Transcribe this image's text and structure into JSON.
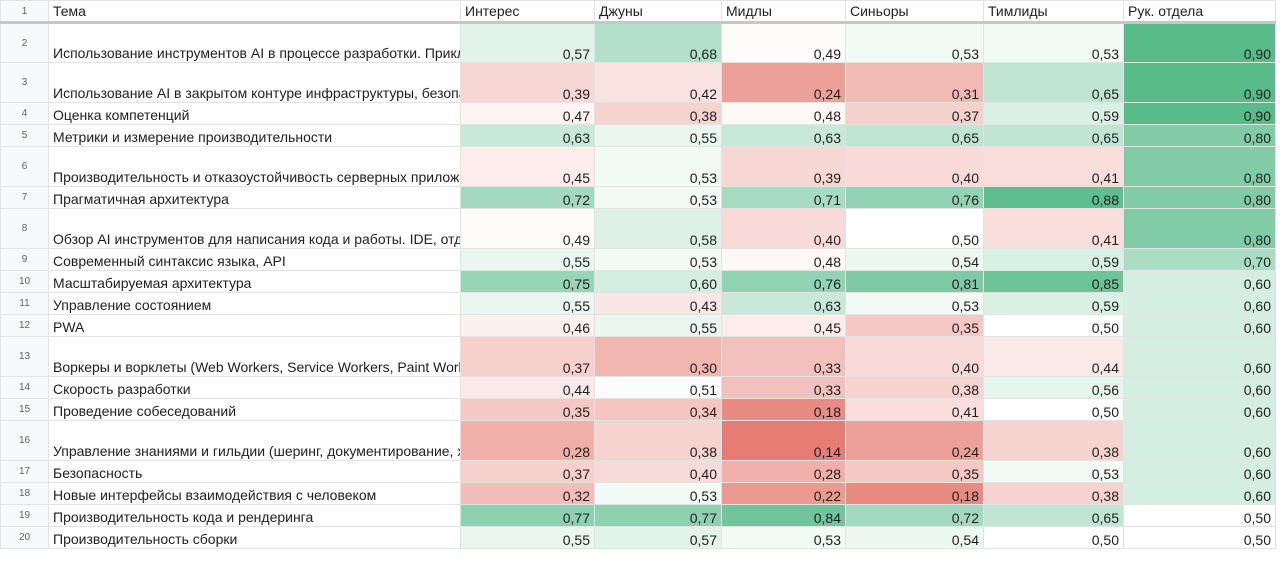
{
  "header": {
    "row_number": "1",
    "columns": [
      "Тема",
      "Интерес",
      "Джуны",
      "Мидлы",
      "Синьоры",
      "Тимлиды",
      "Рук. отдела"
    ]
  },
  "colors": {
    "low": "#e67c73",
    "mid": "#ffffff",
    "high": "#57bb8a"
  },
  "rows": [
    {
      "n": "2",
      "topic": "Использование инструментов AI в процессе разработки. Прикладные примеры, задачи.",
      "values": [
        "0,57",
        "0,68",
        "0,49",
        "0,53",
        "0,53",
        "0,90"
      ]
    },
    {
      "n": "3",
      "topic": "Использование AI в закрытом контуре инфраструктуры, безопасность.",
      "values": [
        "0,39",
        "0,42",
        "0,24",
        "0,31",
        "0,65",
        "0,90"
      ]
    },
    {
      "n": "4",
      "topic": "Оценка компетенций",
      "values": [
        "0,47",
        "0,38",
        "0,48",
        "0,37",
        "0,59",
        "0,90"
      ]
    },
    {
      "n": "5",
      "topic": "Метрики и измерение производительности",
      "values": [
        "0,63",
        "0,55",
        "0,63",
        "0,65",
        "0,65",
        "0,80"
      ]
    },
    {
      "n": "6",
      "topic": "Производительность и отказоустойчивость серверных приложений от фронтендеров",
      "values": [
        "0,45",
        "0,53",
        "0,39",
        "0,40",
        "0,41",
        "0,80"
      ]
    },
    {
      "n": "7",
      "topic": "Прагматичная архитектура",
      "values": [
        "0,72",
        "0,53",
        "0,71",
        "0,76",
        "0,88",
        "0,80"
      ]
    },
    {
      "n": "8",
      "topic": "Обзор AI инструментов для написания кода и работы. IDE, отдельные приложения, популярные AI для работы.",
      "values": [
        "0,49",
        "0,58",
        "0,40",
        "0,50",
        "0,41",
        "0,80"
      ]
    },
    {
      "n": "9",
      "topic": "Современный синтаксис языка, API",
      "values": [
        "0,55",
        "0,53",
        "0,48",
        "0,54",
        "0,59",
        "0,70"
      ]
    },
    {
      "n": "10",
      "topic": "Масштабируемая архитектура",
      "values": [
        "0,75",
        "0,60",
        "0,76",
        "0,81",
        "0,85",
        "0,60"
      ]
    },
    {
      "n": "11",
      "topic": "Управление состоянием",
      "values": [
        "0,55",
        "0,43",
        "0,63",
        "0,53",
        "0,59",
        "0,60"
      ]
    },
    {
      "n": "12",
      "topic": "PWA",
      "values": [
        "0,46",
        "0,55",
        "0,45",
        "0,35",
        "0,50",
        "0,60"
      ]
    },
    {
      "n": "13",
      "topic": "Воркеры и ворклеты (Web Workers, Service Workers, Paint Worklet)",
      "values": [
        "0,37",
        "0,30",
        "0,33",
        "0,40",
        "0,44",
        "0,60"
      ]
    },
    {
      "n": "14",
      "topic": "Скорость разработки",
      "values": [
        "0,44",
        "0,51",
        "0,33",
        "0,38",
        "0,56",
        "0,60"
      ]
    },
    {
      "n": "15",
      "topic": "Проведение собеседований",
      "values": [
        "0,35",
        "0,34",
        "0,18",
        "0,41",
        "0,50",
        "0,60"
      ]
    },
    {
      "n": "16",
      "topic": "Управление знаниями и гильдии (шеринг, документирование, хорошие практики)",
      "values": [
        "0,28",
        "0,38",
        "0,14",
        "0,24",
        "0,38",
        "0,60"
      ]
    },
    {
      "n": "17",
      "topic": "Безопасность",
      "values": [
        "0,37",
        "0,40",
        "0,28",
        "0,35",
        "0,53",
        "0,60"
      ]
    },
    {
      "n": "18",
      "topic": "Новые интерфейсы взаимодействия с человеком",
      "values": [
        "0,32",
        "0,53",
        "0,22",
        "0,18",
        "0,38",
        "0,60"
      ]
    },
    {
      "n": "19",
      "topic": "Производительность кода и рендеринга",
      "values": [
        "0,77",
        "0,77",
        "0,84",
        "0,72",
        "0,65",
        "0,50"
      ]
    },
    {
      "n": "20",
      "topic": "Производительность сборки",
      "values": [
        "0,55",
        "0,57",
        "0,53",
        "0,54",
        "0,50",
        "0,50"
      ]
    }
  ]
}
